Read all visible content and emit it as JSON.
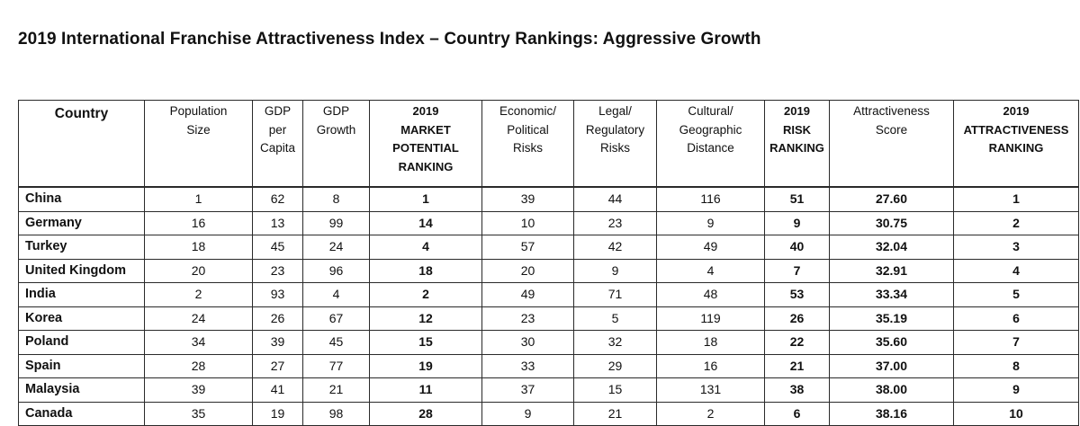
{
  "title": "2019 International Franchise Attractiveness Index – Country Rankings: Aggressive Growth",
  "headers": [
    [
      "Country"
    ],
    [
      "Population",
      "Size"
    ],
    [
      "GDP",
      "per",
      "Capita"
    ],
    [
      "GDP",
      "Growth"
    ],
    [
      "2019",
      "MARKET",
      "POTENTIAL",
      "RANKING"
    ],
    [
      "Economic/",
      "Political",
      "Risks"
    ],
    [
      "Legal/",
      "Regulatory",
      "Risks"
    ],
    [
      "Cultural/",
      "Geographic",
      "Distance"
    ],
    [
      "2019",
      "RISK",
      "RANKING"
    ],
    [
      "Attractiveness",
      "Score"
    ],
    [
      "2019",
      "ATTRACTIVENESS",
      "RANKING"
    ]
  ],
  "rows": [
    [
      "China",
      "1",
      "62",
      "8",
      "1",
      "39",
      "44",
      "116",
      "51",
      "27.60",
      "1"
    ],
    [
      "Germany",
      "16",
      "13",
      "99",
      "14",
      "10",
      "23",
      "9",
      "9",
      "30.75",
      "2"
    ],
    [
      "Turkey",
      "18",
      "45",
      "24",
      "4",
      "57",
      "42",
      "49",
      "40",
      "32.04",
      "3"
    ],
    [
      "United Kingdom",
      "20",
      "23",
      "96",
      "18",
      "20",
      "9",
      "4",
      "7",
      "32.91",
      "4"
    ],
    [
      "India",
      "2",
      "93",
      "4",
      "2",
      "49",
      "71",
      "48",
      "53",
      "33.34",
      "5"
    ],
    [
      "Korea",
      "24",
      "26",
      "67",
      "12",
      "23",
      "5",
      "119",
      "26",
      "35.19",
      "6"
    ],
    [
      "Poland",
      "34",
      "39",
      "45",
      "15",
      "30",
      "32",
      "18",
      "22",
      "35.60",
      "7"
    ],
    [
      "Spain",
      "28",
      "27",
      "77",
      "19",
      "33",
      "29",
      "16",
      "21",
      "37.00",
      "8"
    ],
    [
      "Malaysia",
      "39",
      "41",
      "21",
      "11",
      "37",
      "15",
      "131",
      "38",
      "38.00",
      "9"
    ],
    [
      "Canada",
      "35",
      "19",
      "98",
      "28",
      "9",
      "21",
      "2",
      "6",
      "38.16",
      "10"
    ]
  ]
}
